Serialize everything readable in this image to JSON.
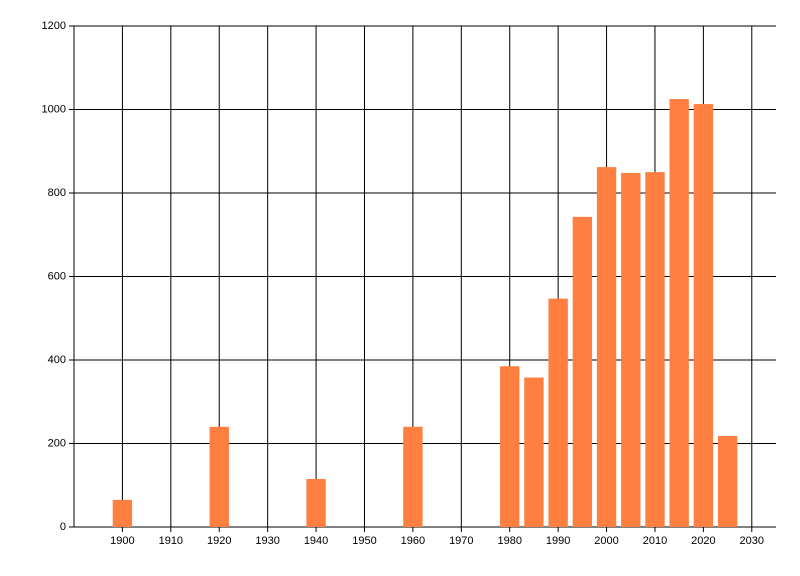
{
  "chart_data": {
    "type": "bar",
    "x": [
      1900,
      1920,
      1940,
      1960,
      1980,
      1985,
      1990,
      1995,
      2000,
      2005,
      2010,
      2015,
      2020,
      2025
    ],
    "values": [
      65,
      240,
      115,
      240,
      385,
      358,
      547,
      743,
      862,
      848,
      850,
      1025,
      1013,
      218
    ],
    "color": "#ff7f40",
    "xlim": [
      1890,
      2035
    ],
    "xticks": [
      1900,
      1910,
      1920,
      1930,
      1940,
      1950,
      1960,
      1970,
      1980,
      1990,
      2000,
      2010,
      2020,
      2030
    ],
    "ylim": [
      0,
      1200
    ],
    "yticks": [
      0,
      200,
      400,
      600,
      800,
      1000,
      1200
    ],
    "grid": true
  }
}
